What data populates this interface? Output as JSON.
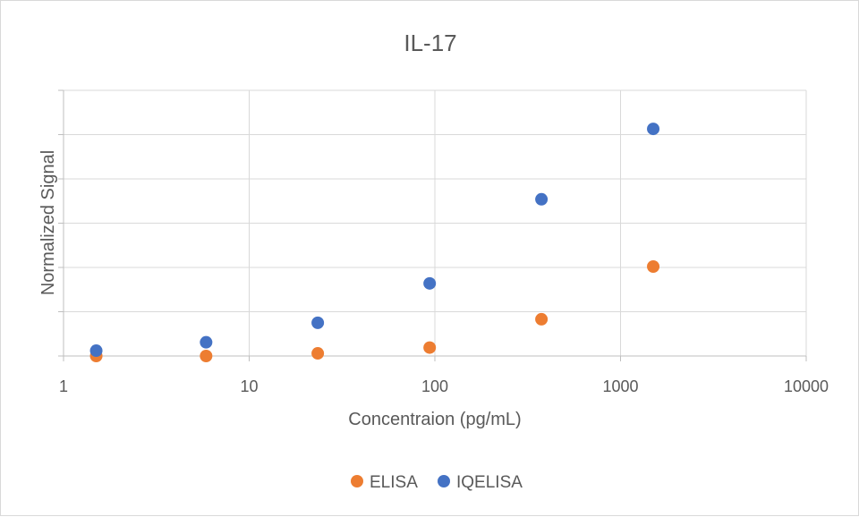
{
  "chart_data": {
    "type": "scatter",
    "title": "IL-17",
    "xlabel": "Concentraion (pg/mL)",
    "ylabel": "Normalized Signal",
    "x_scale": "log",
    "xlim": [
      1,
      10000
    ],
    "ylim": [
      0,
      6
    ],
    "x_ticks": [
      1,
      10,
      100,
      1000,
      10000
    ],
    "x_tick_labels": [
      "1",
      "10",
      "100",
      "1000",
      "10000"
    ],
    "y_tick_count": 6,
    "y_tick_labels_shown": false,
    "grid": true,
    "legend_position": "bottom",
    "series": [
      {
        "name": "ELISA",
        "color": "#ED7D31",
        "x": [
          1.5,
          5.86,
          23.4,
          93.75,
          375,
          1500
        ],
        "y": [
          0.0,
          0.0,
          0.06,
          0.19,
          0.83,
          2.02
        ]
      },
      {
        "name": "IQELISA",
        "color": "#4472C4",
        "x": [
          1.5,
          5.86,
          23.4,
          93.75,
          375,
          1500
        ],
        "y": [
          0.12,
          0.31,
          0.75,
          1.64,
          3.54,
          5.13
        ]
      }
    ]
  }
}
